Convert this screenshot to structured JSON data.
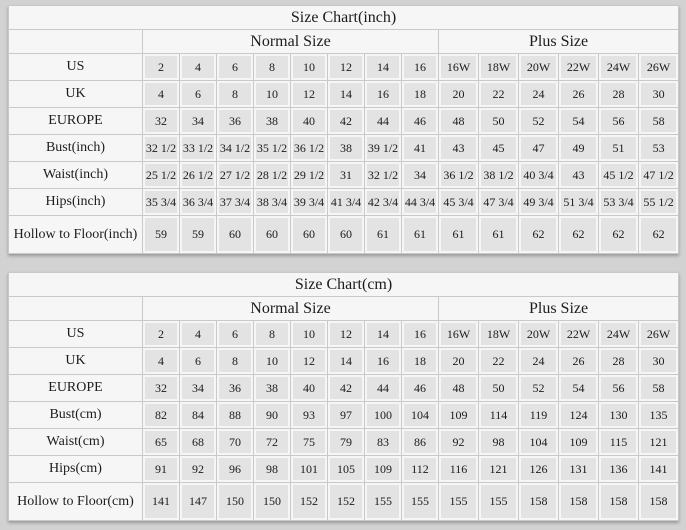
{
  "palette": {
    "page_background": "#d2d2d2",
    "panel_background": "#f6f6f6",
    "cell_background": "#e3e3e3",
    "grid_line": "#c9c9c9",
    "text": "#1c1c1c"
  },
  "chart_data": [
    {
      "type": "table",
      "title": "Size Chart(inch)",
      "column_groups": [
        {
          "label": "Normal Size",
          "span": 8
        },
        {
          "label": "Plus Size",
          "span": 6
        }
      ],
      "rows": [
        {
          "label": "US",
          "values": [
            "2",
            "4",
            "6",
            "8",
            "10",
            "12",
            "14",
            "16",
            "16W",
            "18W",
            "20W",
            "22W",
            "24W",
            "26W"
          ]
        },
        {
          "label": "UK",
          "values": [
            "4",
            "6",
            "8",
            "10",
            "12",
            "14",
            "16",
            "18",
            "20",
            "22",
            "24",
            "26",
            "28",
            "30"
          ]
        },
        {
          "label": "EUROPE",
          "values": [
            "32",
            "34",
            "36",
            "38",
            "40",
            "42",
            "44",
            "46",
            "48",
            "50",
            "52",
            "54",
            "56",
            "58"
          ]
        },
        {
          "label": "Bust(inch)",
          "values": [
            "32 1/2",
            "33 1/2",
            "34 1/2",
            "35 1/2",
            "36 1/2",
            "38",
            "39 1/2",
            "41",
            "43",
            "45",
            "47",
            "49",
            "51",
            "53"
          ]
        },
        {
          "label": "Waist(inch)",
          "values": [
            "25 1/2",
            "26 1/2",
            "27 1/2",
            "28 1/2",
            "29 1/2",
            "31",
            "32 1/2",
            "34",
            "36 1/2",
            "38 1/2",
            "40 3/4",
            "43",
            "45 1/2",
            "47 1/2"
          ]
        },
        {
          "label": "Hips(inch)",
          "values": [
            "35 3/4",
            "36 3/4",
            "37 3/4",
            "38 3/4",
            "39 3/4",
            "41 3/4",
            "42 3/4",
            "44 3/4",
            "45 3/4",
            "47 3/4",
            "49 3/4",
            "51 3/4",
            "53 3/4",
            "55 1/2"
          ]
        },
        {
          "label": "Hollow to Floor(inch)",
          "values": [
            "59",
            "59",
            "60",
            "60",
            "60",
            "60",
            "61",
            "61",
            "61",
            "61",
            "62",
            "62",
            "62",
            "62"
          ]
        }
      ]
    },
    {
      "type": "table",
      "title": "Size Chart(cm)",
      "column_groups": [
        {
          "label": "Normal Size",
          "span": 8
        },
        {
          "label": "Plus Size",
          "span": 6
        }
      ],
      "rows": [
        {
          "label": "US",
          "values": [
            "2",
            "4",
            "6",
            "8",
            "10",
            "12",
            "14",
            "16",
            "16W",
            "18W",
            "20W",
            "22W",
            "24W",
            "26W"
          ]
        },
        {
          "label": "UK",
          "values": [
            "4",
            "6",
            "8",
            "10",
            "12",
            "14",
            "16",
            "18",
            "20",
            "22",
            "24",
            "26",
            "28",
            "30"
          ]
        },
        {
          "label": "EUROPE",
          "values": [
            "32",
            "34",
            "36",
            "38",
            "40",
            "42",
            "44",
            "46",
            "48",
            "50",
            "52",
            "54",
            "56",
            "58"
          ]
        },
        {
          "label": "Bust(cm)",
          "values": [
            "82",
            "84",
            "88",
            "90",
            "93",
            "97",
            "100",
            "104",
            "109",
            "114",
            "119",
            "124",
            "130",
            "135"
          ]
        },
        {
          "label": "Waist(cm)",
          "values": [
            "65",
            "68",
            "70",
            "72",
            "75",
            "79",
            "83",
            "86",
            "92",
            "98",
            "104",
            "109",
            "115",
            "121"
          ]
        },
        {
          "label": "Hips(cm)",
          "values": [
            "91",
            "92",
            "96",
            "98",
            "101",
            "105",
            "109",
            "112",
            "116",
            "121",
            "126",
            "131",
            "136",
            "141"
          ]
        },
        {
          "label": "Hollow to Floor(cm)",
          "values": [
            "141",
            "147",
            "150",
            "150",
            "152",
            "152",
            "155",
            "155",
            "155",
            "155",
            "158",
            "158",
            "158",
            "158"
          ]
        }
      ]
    }
  ]
}
